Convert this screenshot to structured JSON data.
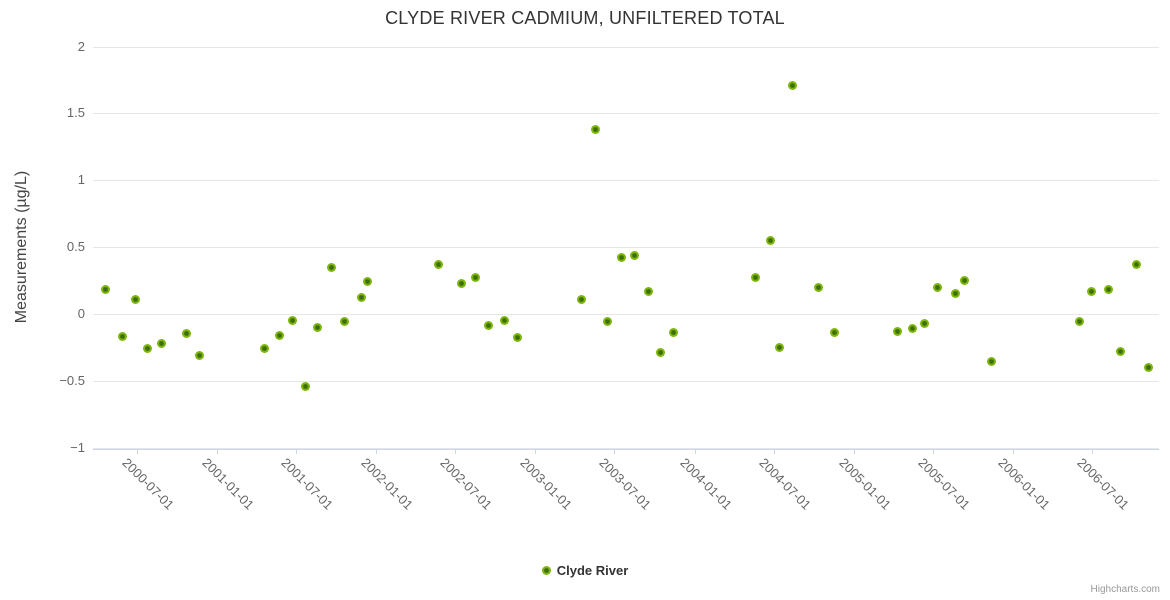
{
  "title": "CLYDE RIVER CADMIUM, UNFILTERED TOTAL",
  "credits_label": "Highcharts.com",
  "legend": {
    "label": "Clyde River"
  },
  "colors": {
    "marker": "#7CB60C",
    "marker_center": "#3F6D06",
    "gridline": "#E6E6E6",
    "axis_line": "#CCD6EB",
    "tick_label": "#666666",
    "title": "#333333",
    "credits": "#999999"
  },
  "chart_data": {
    "type": "scatter",
    "title": "CLYDE RIVER CADMIUM, UNFILTERED TOTAL",
    "xlabel": "",
    "ylabel": "Measurements (µg/L)",
    "grid": true,
    "legend_position": "bottom",
    "x_axis": {
      "type": "datetime",
      "label_rotation": 45,
      "tick_labels": [
        "2000-07-01",
        "2001-01-01",
        "2001-07-01",
        "2002-01-01",
        "2002-07-01",
        "2003-01-01",
        "2003-07-01",
        "2004-01-01",
        "2004-07-01",
        "2005-01-01",
        "2005-07-01",
        "2006-01-01",
        "2006-07-01"
      ]
    },
    "y_axis": {
      "min": -1,
      "max": 2,
      "ticks": [
        2,
        1.5,
        1,
        0.5,
        0,
        -0.5,
        -1
      ]
    },
    "series": [
      {
        "name": "Clyde River",
        "color": "#7CB60C",
        "data": [
          [
            "2000-04-20",
            0.18
          ],
          [
            "2000-05-29",
            -0.17
          ],
          [
            "2000-06-28",
            0.11
          ],
          [
            "2000-07-24",
            -0.26
          ],
          [
            "2000-08-27",
            -0.22
          ],
          [
            "2000-10-23",
            -0.15
          ],
          [
            "2000-11-21",
            -0.31
          ],
          [
            "2001-04-20",
            -0.26
          ],
          [
            "2001-05-23",
            -0.16
          ],
          [
            "2001-06-23",
            -0.05
          ],
          [
            "2001-07-23",
            -0.54
          ],
          [
            "2001-08-18",
            -0.1
          ],
          [
            "2001-09-20",
            0.35
          ],
          [
            "2001-10-20",
            -0.06
          ],
          [
            "2001-11-29",
            0.12
          ],
          [
            "2001-12-12",
            0.24
          ],
          [
            "2002-05-23",
            0.37
          ],
          [
            "2002-07-16",
            0.23
          ],
          [
            "2002-08-17",
            0.27
          ],
          [
            "2002-09-16",
            -0.09
          ],
          [
            "2002-10-22",
            -0.05
          ],
          [
            "2002-11-21",
            -0.18
          ],
          [
            "2003-04-17",
            0.11
          ],
          [
            "2003-05-18",
            1.38
          ],
          [
            "2003-06-15",
            -0.06
          ],
          [
            "2003-07-18",
            0.42
          ],
          [
            "2003-08-15",
            0.44
          ],
          [
            "2003-09-18",
            0.17
          ],
          [
            "2003-10-15",
            -0.29
          ],
          [
            "2003-11-13",
            -0.14
          ],
          [
            "2004-05-20",
            0.27
          ],
          [
            "2004-06-24",
            0.55
          ],
          [
            "2004-07-14",
            -0.25
          ],
          [
            "2004-08-13",
            1.71
          ],
          [
            "2004-10-12",
            0.2
          ],
          [
            "2004-11-16",
            -0.14
          ],
          [
            "2005-04-11",
            -0.13
          ],
          [
            "2005-05-15",
            -0.11
          ],
          [
            "2005-06-11",
            -0.07
          ],
          [
            "2005-07-12",
            0.2
          ],
          [
            "2005-08-21",
            0.15
          ],
          [
            "2005-09-10",
            0.25
          ],
          [
            "2005-11-13",
            -0.36
          ],
          [
            "2006-06-01",
            -0.06
          ],
          [
            "2006-06-29",
            0.17
          ],
          [
            "2006-08-08",
            0.18
          ],
          [
            "2006-09-04",
            -0.28
          ],
          [
            "2006-10-11",
            0.37
          ],
          [
            "2006-11-08",
            -0.4
          ]
        ]
      }
    ]
  }
}
